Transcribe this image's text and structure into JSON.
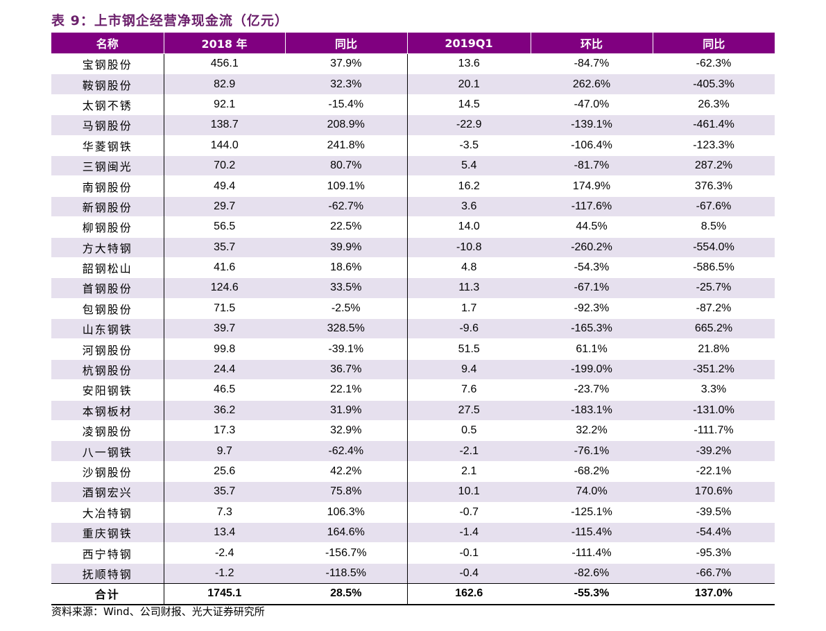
{
  "title": "表 9：上市钢企经营净现金流（亿元）",
  "columns": [
    "名称",
    "2018 年",
    "同比",
    "2019Q1",
    "环比",
    "同比"
  ],
  "rows": [
    [
      "宝钢股份",
      "456.1",
      "37.9%",
      "13.6",
      "-84.7%",
      "-62.3%"
    ],
    [
      "鞍钢股份",
      "82.9",
      "32.3%",
      "20.1",
      "262.6%",
      "-405.3%"
    ],
    [
      "太钢不锈",
      "92.1",
      "-15.4%",
      "14.5",
      "-47.0%",
      "26.3%"
    ],
    [
      "马钢股份",
      "138.7",
      "208.9%",
      "-22.9",
      "-139.1%",
      "-461.4%"
    ],
    [
      "华菱钢铁",
      "144.0",
      "241.8%",
      "-3.5",
      "-106.4%",
      "-123.3%"
    ],
    [
      "三钢闽光",
      "70.2",
      "80.7%",
      "5.4",
      "-81.7%",
      "287.2%"
    ],
    [
      "南钢股份",
      "49.4",
      "109.1%",
      "16.2",
      "174.9%",
      "376.3%"
    ],
    [
      "新钢股份",
      "29.7",
      "-62.7%",
      "3.6",
      "-117.6%",
      "-67.6%"
    ],
    [
      "柳钢股份",
      "56.5",
      "22.5%",
      "14.0",
      "44.5%",
      "8.5%"
    ],
    [
      "方大特钢",
      "35.7",
      "39.9%",
      "-10.8",
      "-260.2%",
      "-554.0%"
    ],
    [
      "韶钢松山",
      "41.6",
      "18.6%",
      "4.8",
      "-54.3%",
      "-586.5%"
    ],
    [
      "首钢股份",
      "124.6",
      "33.5%",
      "11.3",
      "-67.1%",
      "-25.7%"
    ],
    [
      "包钢股份",
      "71.5",
      "-2.5%",
      "1.7",
      "-92.3%",
      "-87.2%"
    ],
    [
      "山东钢铁",
      "39.7",
      "328.5%",
      "-9.6",
      "-165.3%",
      "665.2%"
    ],
    [
      "河钢股份",
      "99.8",
      "-39.1%",
      "51.5",
      "61.1%",
      "21.8%"
    ],
    [
      "杭钢股份",
      "24.4",
      "36.7%",
      "9.4",
      "-199.0%",
      "-351.2%"
    ],
    [
      "安阳钢铁",
      "46.5",
      "22.1%",
      "7.6",
      "-23.7%",
      "3.3%"
    ],
    [
      "本钢板材",
      "36.2",
      "31.9%",
      "27.5",
      "-183.1%",
      "-131.0%"
    ],
    [
      "凌钢股份",
      "17.3",
      "32.9%",
      "0.5",
      "32.2%",
      "-111.7%"
    ],
    [
      "八一钢铁",
      "9.7",
      "-62.4%",
      "-2.1",
      "-76.1%",
      "-39.2%"
    ],
    [
      "沙钢股份",
      "25.6",
      "42.2%",
      "2.1",
      "-68.2%",
      "-22.1%"
    ],
    [
      "酒钢宏兴",
      "35.7",
      "75.8%",
      "10.1",
      "74.0%",
      "170.6%"
    ],
    [
      "大冶特钢",
      "7.3",
      "106.3%",
      "-0.7",
      "-125.1%",
      "-39.5%"
    ],
    [
      "重庆钢铁",
      "13.4",
      "164.6%",
      "-1.4",
      "-115.4%",
      "-54.4%"
    ],
    [
      "西宁特钢",
      "-2.4",
      "-156.7%",
      "-0.1",
      "-111.4%",
      "-95.3%"
    ],
    [
      "抚顺特钢",
      "-1.2",
      "-118.5%",
      "-0.4",
      "-82.6%",
      "-66.7%"
    ]
  ],
  "total": [
    "合计",
    "1745.1",
    "28.5%",
    "162.6",
    "-55.3%",
    "137.0%"
  ],
  "source": "资料来源：Wind、公司财报、光大证券研究所",
  "colors": {
    "header_bg": "#800080",
    "stripe_bg": "#e6e0ee",
    "title_color": "#6b1f6b"
  }
}
